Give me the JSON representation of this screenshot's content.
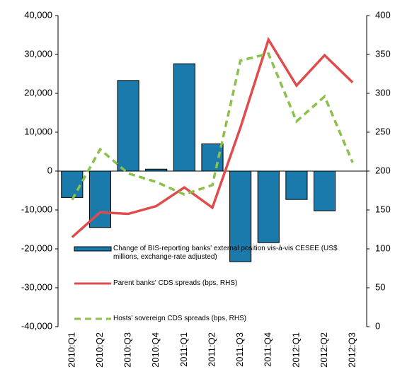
{
  "chart_data": {
    "type": "bar_line",
    "categories": [
      "2010:Q1",
      "2010:Q2",
      "2010:Q3",
      "2010:Q4",
      "2011:Q1",
      "2011:Q2",
      "2011:Q3",
      "2011:Q4",
      "2012:Q1",
      "2012:Q2",
      "2012:Q3"
    ],
    "series": [
      {
        "name": "Change of BIS-reporting banks' external position vis-à-vis CESEE (US$ millions, exchange-rate adjusted)",
        "type": "bar",
        "color": "#1a7aab",
        "values": [
          -6800,
          -14500,
          23300,
          500,
          27600,
          7000,
          -23300,
          -18400,
          -7300,
          -10200,
          0
        ]
      },
      {
        "name": "Parent banks' CDS spreads (bps, RHS)",
        "type": "line",
        "axis": "y2",
        "color": "#e04b4b",
        "dash": false,
        "values": [
          115,
          147,
          145,
          155,
          179,
          153,
          256,
          369,
          310,
          349,
          314
        ]
      },
      {
        "name": "Hosts' sovereign CDS spreads (bps, RHS)",
        "type": "line",
        "axis": "y2",
        "color": "#8cc04b",
        "dash": true,
        "values": [
          163,
          228,
          197,
          186,
          170,
          182,
          342,
          351,
          264,
          296,
          211
        ]
      }
    ],
    "ylim": [
      -40000,
      40000
    ],
    "yticks": [
      {
        "value": -40000,
        "label": "-40,000"
      },
      {
        "value": -30000,
        "label": "-30,000"
      },
      {
        "value": -20000,
        "label": "-20,000"
      },
      {
        "value": -10000,
        "label": "-10,000"
      },
      0,
      {
        "value": 10000,
        "label": "10,000"
      },
      {
        "value": 20000,
        "label": "20,000"
      },
      {
        "value": 30000,
        "label": "30,000"
      },
      {
        "value": 40000,
        "label": "40,000"
      }
    ],
    "y2lim": [
      0,
      400
    ],
    "y2ticks": [
      0,
      50,
      100,
      150,
      200,
      250,
      300,
      350,
      400
    ],
    "grid": false
  }
}
